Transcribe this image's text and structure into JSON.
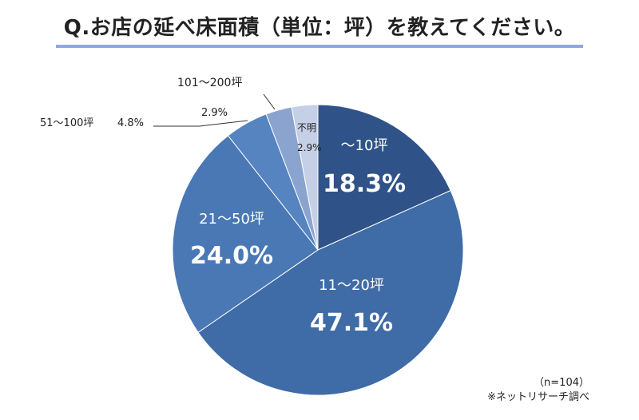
{
  "title": "Q.お店の延べ床面積（単位：坪）を教えてください。",
  "note_n": "（n=104）",
  "note_source": "※ネットリサーチ調べ",
  "chart_data": {
    "type": "pie",
    "categories": [
      "～10坪",
      "11～20坪",
      "21～50坪",
      "51～100坪",
      "101～200坪",
      "不明"
    ],
    "values": [
      18.3,
      47.1,
      24.0,
      4.8,
      2.9,
      2.9
    ],
    "value_labels": [
      "18.3%",
      "47.1%",
      "24.0%",
      "4.8%",
      "2.9%",
      "2.9%"
    ],
    "start": "12 o'clock",
    "direction": "clockwise",
    "colors": [
      "#2f5388",
      "#3f6ba6",
      "#4a78b5",
      "#5584c0",
      "#8ba4cf",
      "#c5d0e6"
    ]
  }
}
